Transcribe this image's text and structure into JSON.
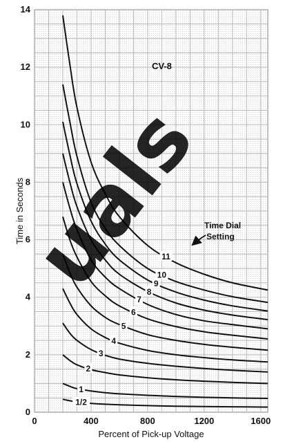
{
  "chart_data": {
    "type": "line",
    "title": "CV-8",
    "xlabel": "Percent of Pick-up Voltage",
    "ylabel": "Time in Seconds",
    "xlim": [
      0,
      1650
    ],
    "ylim": [
      0,
      14
    ],
    "x_ticks": [
      0,
      400,
      800,
      1200,
      1600
    ],
    "y_ticks": [
      0,
      2,
      4,
      6,
      8,
      10,
      12,
      14
    ],
    "x_tick_labels": [
      "0",
      "400",
      "800",
      "1200",
      "1600"
    ],
    "y_tick_labels": [
      "0",
      "2",
      "4",
      "6",
      "8",
      "10",
      "12",
      "14"
    ],
    "grid": true,
    "legend_annotation": [
      "Time Dial",
      "Setting"
    ],
    "x": [
      200,
      250,
      300,
      400,
      500,
      600,
      800,
      1000,
      1200,
      1400,
      1650
    ],
    "series": [
      {
        "name": "1/2",
        "label_x": 330,
        "values": [
          0.45,
          0.4,
          0.36,
          0.31,
          0.28,
          0.26,
          0.23,
          0.21,
          0.2,
          0.19,
          0.18
        ]
      },
      {
        "name": "1",
        "label_x": 330,
        "values": [
          1.0,
          0.9,
          0.82,
          0.74,
          0.68,
          0.64,
          0.59,
          0.55,
          0.52,
          0.5,
          0.48
        ]
      },
      {
        "name": "2",
        "label_x": 380,
        "values": [
          2.0,
          1.8,
          1.65,
          1.48,
          1.38,
          1.3,
          1.2,
          1.13,
          1.08,
          1.04,
          1.0
        ]
      },
      {
        "name": "3",
        "label_x": 470,
        "values": [
          3.1,
          2.75,
          2.5,
          2.18,
          1.98,
          1.85,
          1.7,
          1.6,
          1.52,
          1.46,
          1.4
        ]
      },
      {
        "name": "4",
        "label_x": 560,
        "values": [
          4.3,
          3.8,
          3.4,
          2.9,
          2.6,
          2.4,
          2.15,
          2.0,
          1.9,
          1.82,
          1.75
        ]
      },
      {
        "name": "5",
        "label_x": 630,
        "values": [
          5.5,
          4.85,
          4.35,
          3.7,
          3.3,
          3.05,
          2.7,
          2.5,
          2.36,
          2.26,
          2.16
        ]
      },
      {
        "name": "6",
        "label_x": 700,
        "values": [
          6.8,
          6.0,
          5.4,
          4.55,
          4.05,
          3.7,
          3.25,
          2.98,
          2.8,
          2.68,
          2.55
        ]
      },
      {
        "name": "7",
        "label_x": 740,
        "values": [
          8.0,
          7.1,
          6.35,
          5.3,
          4.7,
          4.3,
          3.75,
          3.4,
          3.18,
          3.05,
          2.9
        ]
      },
      {
        "name": "8",
        "label_x": 810,
        "values": [
          9.0,
          8.0,
          7.15,
          6.0,
          5.3,
          4.8,
          4.2,
          3.8,
          3.55,
          3.38,
          3.22
        ]
      },
      {
        "name": "9",
        "label_x": 860,
        "values": [
          10.1,
          8.95,
          7.95,
          6.65,
          5.85,
          5.3,
          4.6,
          4.18,
          3.9,
          3.7,
          3.52
        ]
      },
      {
        "name": "10",
        "label_x": 900,
        "values": [
          11.4,
          10.1,
          8.9,
          7.3,
          6.4,
          5.8,
          5.0,
          4.55,
          4.25,
          4.02,
          3.82
        ]
      },
      {
        "name": "11",
        "label_x": 930,
        "values": [
          13.8,
          12.1,
          10.6,
          8.7,
          7.6,
          6.8,
          5.8,
          5.2,
          4.8,
          4.5,
          4.25
        ]
      }
    ]
  }
}
